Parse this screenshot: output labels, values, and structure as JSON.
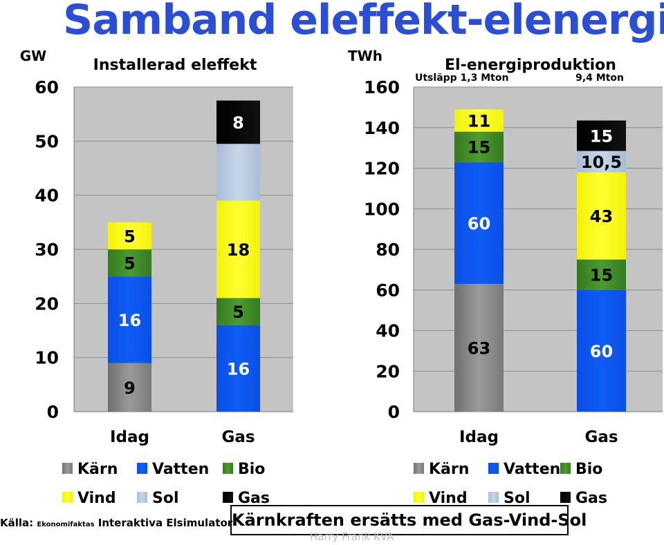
{
  "title": "Samband eleffekt-elenergi",
  "source": {
    "prefix": "Källa: ",
    "small": "Ekonomifaktas",
    "rest": " Interaktiva Elsimulator"
  },
  "conclusion": "Kärnkraften ersätts med Gas-Vind-Sol",
  "credit": "Harry Frank KVA",
  "colors": {
    "Kärn": "#8c8c8c",
    "Vatten": "#0a55f0",
    "Bio": "#3f8f28",
    "Vind": "#fafa14",
    "Sol": "#b8cbe0",
    "Gas": "#000000",
    "plot_bg": "#c4c4c4"
  },
  "chart_data": [
    {
      "type": "bar",
      "stacked": true,
      "title": "Installerad eleffekt",
      "ylabel": "GW",
      "ylim": [
        0,
        60
      ],
      "yticks": [
        0,
        10,
        20,
        30,
        40,
        50,
        60
      ],
      "categories": [
        "Idag",
        "Gas"
      ],
      "series": [
        {
          "name": "Kärn",
          "values": [
            9,
            0
          ],
          "labels": [
            "9",
            ""
          ]
        },
        {
          "name": "Vatten",
          "values": [
            16,
            16
          ],
          "labels": [
            "16",
            "16"
          ]
        },
        {
          "name": "Bio",
          "values": [
            5,
            5
          ],
          "labels": [
            "5",
            "5"
          ]
        },
        {
          "name": "Vind",
          "values": [
            5,
            18
          ],
          "labels": [
            "5",
            "18"
          ]
        },
        {
          "name": "Sol",
          "values": [
            0,
            10.5
          ],
          "labels": [
            "",
            ""
          ]
        },
        {
          "name": "Gas",
          "values": [
            0,
            8
          ],
          "labels": [
            "",
            "8"
          ]
        }
      ],
      "legend": [
        "Kärn",
        "Vatten",
        "Bio",
        "Vind",
        "Sol",
        "Gas"
      ],
      "legend_position": "bottom",
      "grid": true
    },
    {
      "type": "bar",
      "stacked": true,
      "title": "El-energiproduktion",
      "ylabel": "TWh",
      "ylim": [
        0,
        160
      ],
      "yticks": [
        0,
        20,
        40,
        60,
        80,
        100,
        120,
        140,
        160
      ],
      "categories": [
        "Idag",
        "Gas"
      ],
      "annotations": [
        "Utsläpp 1,3 Mton",
        "9,4 Mton"
      ],
      "series": [
        {
          "name": "Kärn",
          "values": [
            63,
            0
          ],
          "labels": [
            "63",
            ""
          ]
        },
        {
          "name": "Vatten",
          "values": [
            60,
            60
          ],
          "labels": [
            "60",
            "60"
          ]
        },
        {
          "name": "Bio",
          "values": [
            15,
            15
          ],
          "labels": [
            "15",
            "15"
          ]
        },
        {
          "name": "Vind",
          "values": [
            11,
            43
          ],
          "labels": [
            "11",
            "43"
          ]
        },
        {
          "name": "Sol",
          "values": [
            0,
            10.5
          ],
          "labels": [
            "",
            "10,5"
          ]
        },
        {
          "name": "Gas",
          "values": [
            0,
            15
          ],
          "labels": [
            "",
            "15"
          ]
        }
      ],
      "legend": [
        "Kärn",
        "Vatten",
        "Bio",
        "Vind",
        "Sol",
        "Gas"
      ],
      "legend_position": "bottom",
      "grid": true
    }
  ]
}
